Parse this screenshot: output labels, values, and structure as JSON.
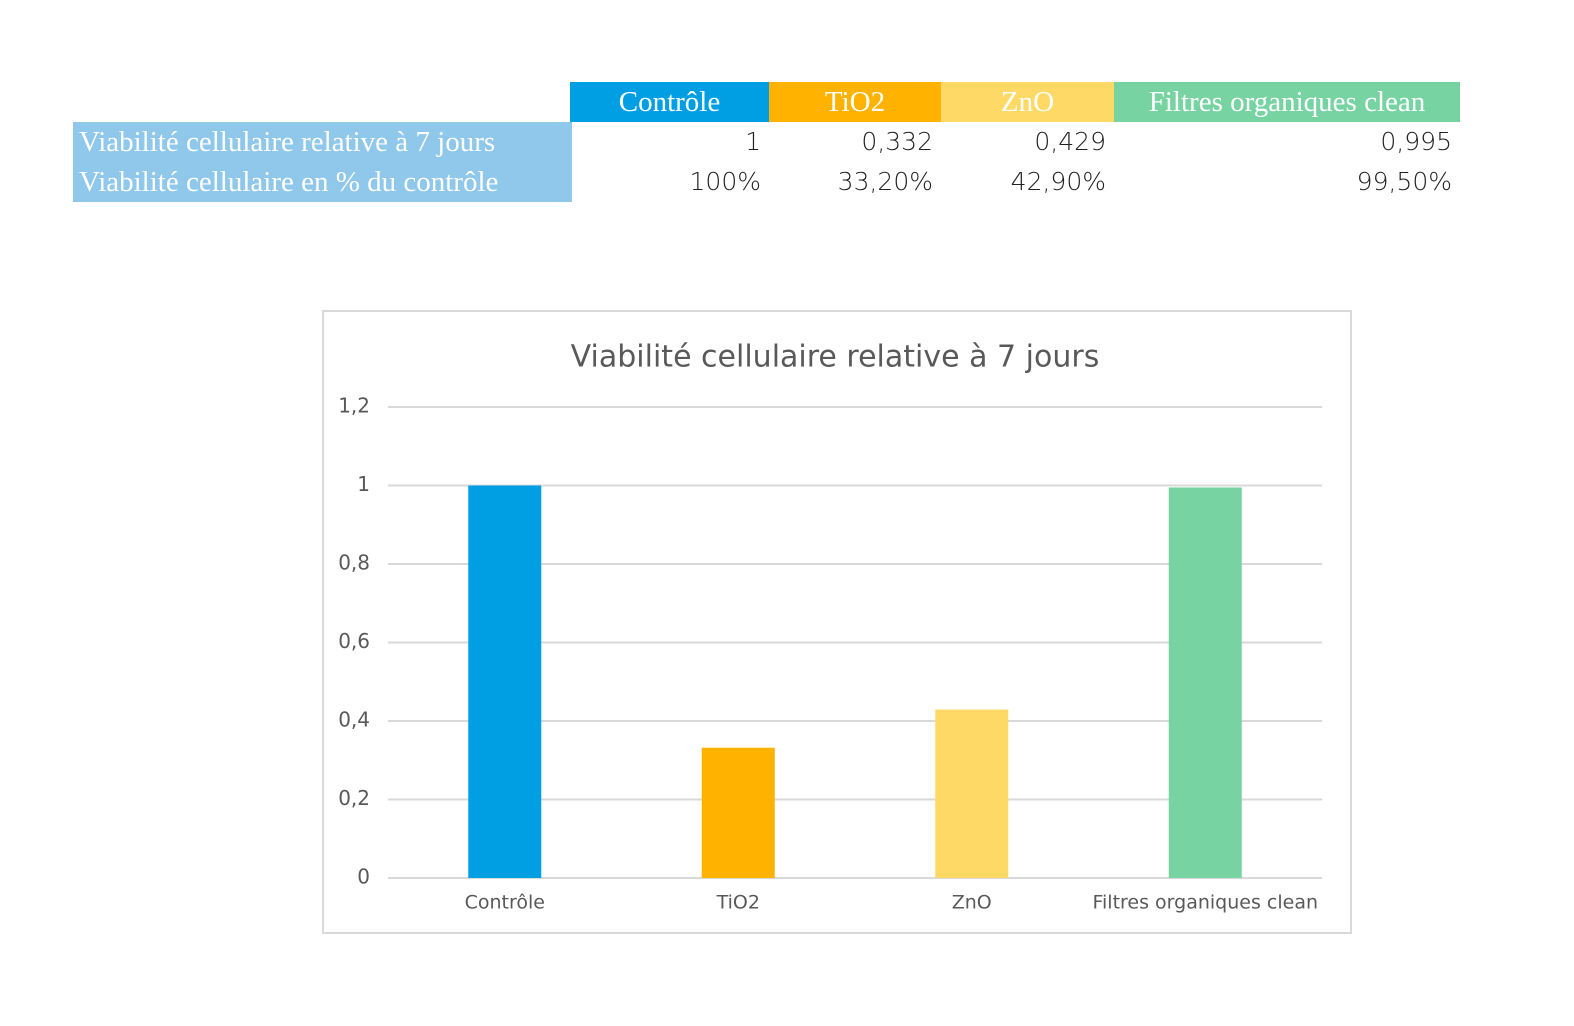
{
  "table": {
    "columns": [
      "Contrôle",
      "TiO2",
      "ZnO",
      "Filtres organiques clean"
    ],
    "column_colors": [
      "#009fe3",
      "#ffb300",
      "#ffd966",
      "#78d3a3"
    ],
    "row_header_color": "#8fc8ea",
    "rows": [
      {
        "label": "Viabilité cellulaire relative à 7 jours",
        "cells": [
          "1",
          "0,332",
          "0,429",
          "0,995"
        ]
      },
      {
        "label": "Viabilité cellulaire en % du contrôle",
        "cells": [
          "100%",
          "33,20%",
          "42,90%",
          "99,50%"
        ]
      }
    ]
  },
  "chart_data": {
    "type": "bar",
    "title": "Viabilité cellulaire relative à 7 jours",
    "categories": [
      "Contrôle",
      "TiO2",
      "ZnO",
      "Filtres organiques clean"
    ],
    "values": [
      1,
      0.332,
      0.429,
      0.995
    ],
    "colors": [
      "#009fe3",
      "#ffb300",
      "#ffd966",
      "#78d3a3"
    ],
    "ylim": [
      0,
      1.2
    ],
    "yticks": [
      0,
      {
        "value": 0.2,
        "label": "0,2"
      },
      {
        "value": 0.4,
        "label": "0,4"
      },
      {
        "value": 0.6,
        "label": "0,6"
      },
      {
        "value": 0.8,
        "label": "0,8"
      },
      1,
      {
        "value": 1.2,
        "label": "1,2"
      }
    ],
    "grid": true
  }
}
